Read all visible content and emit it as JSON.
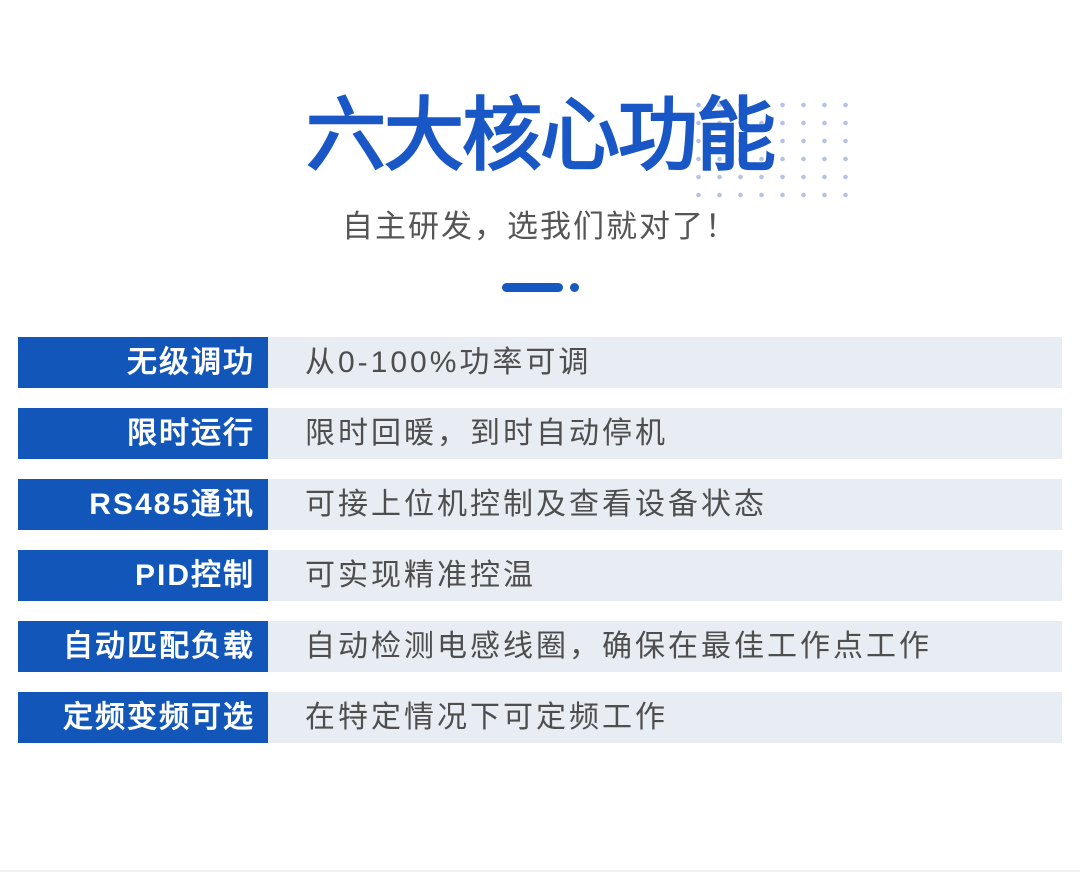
{
  "header": {
    "title": "六大核心功能",
    "subtitle": "自主研发，选我们就对了！"
  },
  "features": [
    {
      "label": "无级调功",
      "description": "从0-100%功率可调"
    },
    {
      "label": "限时运行",
      "description": "限时回暖，到时自动停机"
    },
    {
      "label": "RS485通讯",
      "description": "可接上位机控制及查看设备状态"
    },
    {
      "label": "PID控制",
      "description": "可实现精准控温"
    },
    {
      "label": "自动匹配负载",
      "description": "自动检测电感线圈，确保在最佳工作点工作"
    },
    {
      "label": "定频变频可选",
      "description": "在特定情况下可定频工作"
    }
  ],
  "decor": {
    "dot_grid_icon": "dot-grid-pattern",
    "divider_icon": "dash-dot-accent"
  },
  "colors": {
    "title_blue": "#1a57c6",
    "label_blue": "#1156b8",
    "accent_blue": "#1558c2",
    "row_background": "#e8edf3",
    "description_text": "#4e4e4e",
    "subtitle_text": "#555555",
    "dot_decoration": "#b5c3e5"
  }
}
